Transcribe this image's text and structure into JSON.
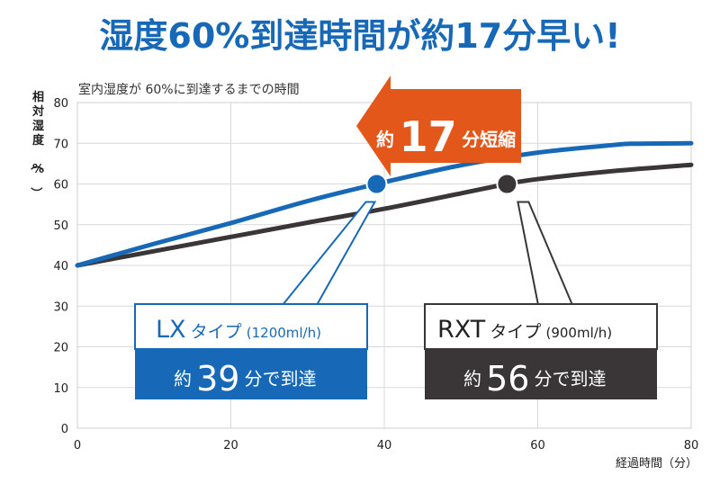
{
  "headline": "湿度60%到達時間が約17分早い!",
  "colors": {
    "lx": "#1769b8",
    "rxt": "#3a3536",
    "arrow": "#e4571a",
    "headline": "#1769b8",
    "grid": "#d9d9d9"
  },
  "chart_data": {
    "type": "line",
    "title": "室内湿度が 60%に到達するまでの時間",
    "xlabel": "経過時間（分）",
    "ylabel": "相対湿度（%）",
    "xlim": [
      0,
      80
    ],
    "ylim": [
      0,
      80
    ],
    "xticks": [
      0,
      20,
      40,
      60,
      80
    ],
    "yticks": [
      0,
      10,
      20,
      30,
      40,
      50,
      60,
      70,
      80
    ],
    "grid": true,
    "series": [
      {
        "name": "LXタイプ",
        "color": "#1769b8",
        "x": [
          0,
          10,
          20,
          30,
          39,
          50,
          60,
          70,
          73,
          80
        ],
        "y": [
          40,
          45.3,
          50.4,
          55.8,
          60,
          64.6,
          67.7,
          69.6,
          69.9,
          70
        ]
      },
      {
        "name": "RXTタイプ",
        "color": "#3a3536",
        "x": [
          0,
          10,
          20,
          30,
          40,
          50,
          56,
          60,
          70,
          80
        ],
        "y": [
          40,
          43.5,
          47,
          50.5,
          53.9,
          57.7,
          60,
          61.2,
          63.2,
          64.7
        ]
      }
    ],
    "markers": [
      {
        "series": "LXタイプ",
        "x": 39,
        "y": 60
      },
      {
        "series": "RXTタイプ",
        "x": 56,
        "y": 60
      }
    ],
    "callouts": {
      "lx": {
        "name": "LX",
        "type": "タイプ",
        "spec": "(1200ml/h)",
        "time_pre": "約",
        "time_value": "39",
        "time_post": "分で到達"
      },
      "rxt": {
        "name": "RXT",
        "type": "タイプ",
        "spec": "(900ml/h)",
        "time_pre": "約",
        "time_value": "56",
        "time_post": "分で到達"
      }
    },
    "arrow_label": {
      "pre": "約",
      "value": "17",
      "post": "分短縮"
    }
  }
}
